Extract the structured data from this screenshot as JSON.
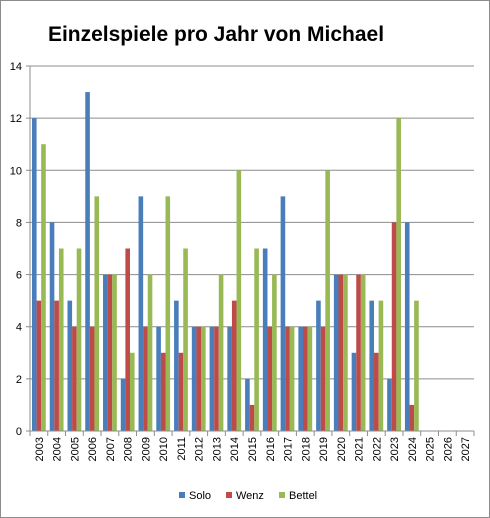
{
  "chart_data": {
    "type": "bar",
    "title": "Einzelspiele pro Jahr von Michael",
    "xlabel": "",
    "ylabel": "",
    "ylim": [
      0,
      14
    ],
    "yticks": [
      0,
      2,
      4,
      6,
      8,
      10,
      12,
      14
    ],
    "grid": "horizontal",
    "legend": "bottom",
    "categories": [
      "2003",
      "2004",
      "2005",
      "2006",
      "2007",
      "2008",
      "2009",
      "2010",
      "2011",
      "2012",
      "2013",
      "2014",
      "2015",
      "2016",
      "2017",
      "2018",
      "2019",
      "2020",
      "2021",
      "2022",
      "2023",
      "2024",
      "2025",
      "2026",
      "2027"
    ],
    "series": [
      {
        "name": "Solo",
        "color": "#4a7ebb",
        "values": [
          12,
          8,
          5,
          13,
          6,
          2,
          9,
          4,
          5,
          4,
          4,
          4,
          2,
          7,
          9,
          4,
          5,
          6,
          3,
          5,
          2,
          8,
          0,
          0,
          0
        ]
      },
      {
        "name": "Wenz",
        "color": "#be4b48",
        "values": [
          5,
          5,
          4,
          4,
          6,
          7,
          4,
          3,
          3,
          4,
          4,
          5,
          1,
          4,
          4,
          4,
          4,
          6,
          6,
          3,
          8,
          1,
          0,
          0,
          0
        ]
      },
      {
        "name": "Bettel",
        "color": "#98b954",
        "values": [
          11,
          7,
          7,
          9,
          6,
          3,
          6,
          9,
          7,
          4,
          6,
          10,
          7,
          6,
          4,
          4,
          10,
          6,
          6,
          5,
          12,
          5,
          0,
          0,
          0
        ]
      }
    ]
  }
}
